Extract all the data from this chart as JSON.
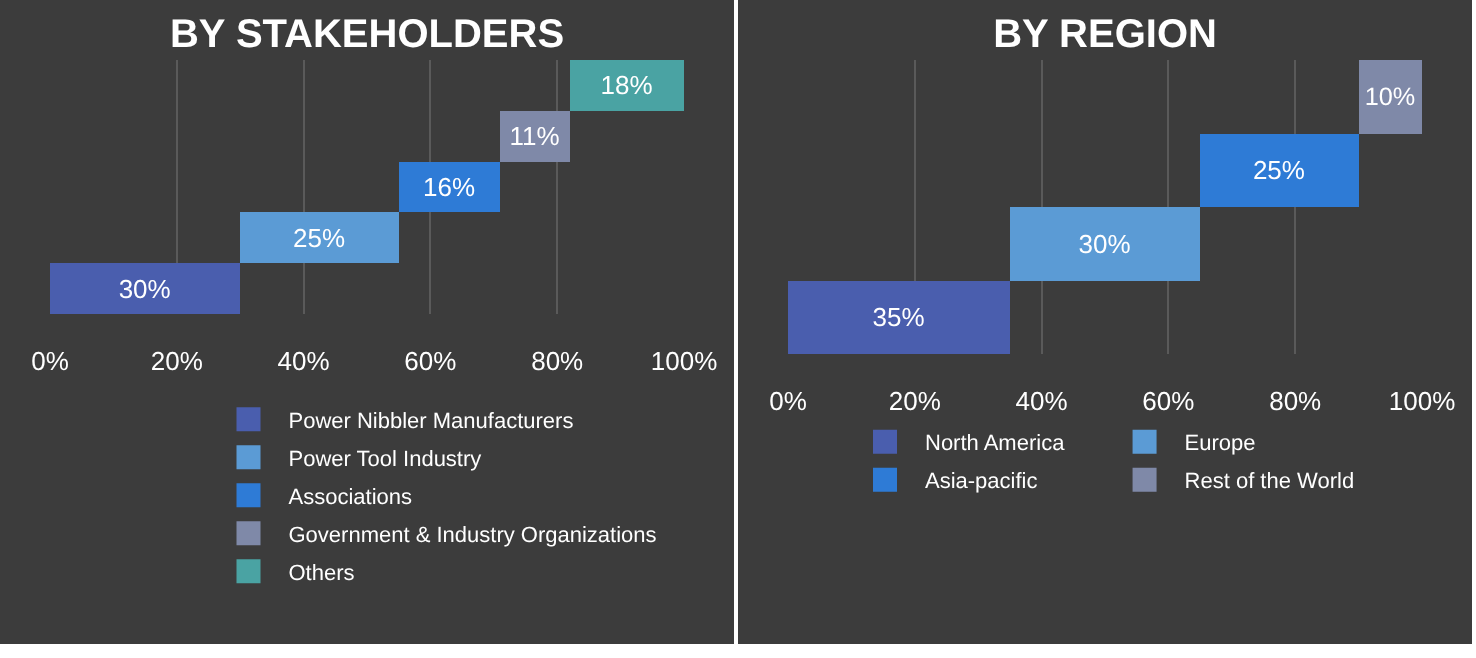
{
  "chart_data": [
    {
      "type": "bar",
      "title": "BY STAKEHOLDERS",
      "orientation": "horizontal",
      "categories": [
        null,
        null,
        null,
        null,
        null
      ],
      "xlim": [
        0,
        100
      ],
      "xticks": [
        {
          "value": 0,
          "label": "0%"
        },
        {
          "value": 20,
          "label": "20%"
        },
        {
          "value": 40,
          "label": "40%"
        },
        {
          "value": 60,
          "label": "60%"
        },
        {
          "value": 80,
          "label": "80%"
        },
        {
          "value": 100,
          "label": "100%"
        }
      ],
      "grid": "x",
      "legend": "bottom",
      "tick_labels": "x",
      "series": [
        {
          "name": "Power Nibbler Manufacturers",
          "color": "#4a5eae",
          "values": [
            null,
            null,
            null,
            null,
            30
          ],
          "base": [
            null,
            null,
            null,
            null,
            0
          ],
          "value_labels": [
            null,
            null,
            null,
            null,
            "30%"
          ]
        },
        {
          "name": "Power Tool Industry",
          "color": "#5b9bd5",
          "values": [
            null,
            null,
            null,
            25,
            null
          ],
          "base": [
            null,
            null,
            null,
            30,
            null
          ],
          "value_labels": [
            null,
            null,
            null,
            "25%",
            null
          ]
        },
        {
          "name": "Associations",
          "color": "#2e7bd6",
          "values": [
            null,
            null,
            16,
            null,
            null
          ],
          "base": [
            null,
            null,
            55,
            null,
            null
          ],
          "value_labels": [
            null,
            null,
            "16%",
            null,
            null
          ]
        },
        {
          "name": "Government & Industry Organizations",
          "color": "#7f89a8",
          "values": [
            null,
            11,
            null,
            null,
            null
          ],
          "base": [
            null,
            71,
            null,
            null,
            null
          ],
          "value_labels": [
            null,
            "11%",
            null,
            null,
            null
          ]
        },
        {
          "name": "Others",
          "color": "#4aa3a3",
          "values": [
            18,
            null,
            null,
            null,
            null
          ],
          "base": [
            82,
            null,
            null,
            null,
            null
          ],
          "value_labels": [
            "18%",
            null,
            null,
            null,
            null
          ]
        }
      ]
    },
    {
      "type": "bar",
      "title": "BY REGION",
      "orientation": "horizontal",
      "categories": [
        null,
        null,
        null,
        null
      ],
      "xlim": [
        0,
        100
      ],
      "xticks": [
        {
          "value": 0,
          "label": "0%"
        },
        {
          "value": 20,
          "label": "20%"
        },
        {
          "value": 40,
          "label": "40%"
        },
        {
          "value": 60,
          "label": "60%"
        },
        {
          "value": 80,
          "label": "80%"
        },
        {
          "value": 100,
          "label": "100%"
        }
      ],
      "grid": "x",
      "legend": "bottom",
      "tick_labels": "x",
      "series": [
        {
          "name": "North America",
          "color": "#4a5eae",
          "values": [
            null,
            null,
            null,
            35
          ],
          "base": [
            null,
            null,
            null,
            0
          ],
          "value_labels": [
            null,
            null,
            null,
            "35%"
          ]
        },
        {
          "name": "Europe",
          "color": "#5b9bd5",
          "values": [
            null,
            null,
            30,
            null
          ],
          "base": [
            null,
            null,
            35,
            null
          ],
          "value_labels": [
            null,
            null,
            "30%",
            null
          ]
        },
        {
          "name": "Asia-pacific",
          "color": "#2e7bd6",
          "values": [
            null,
            25,
            null,
            null
          ],
          "base": [
            null,
            65,
            null,
            null
          ],
          "value_labels": [
            null,
            "25%",
            null,
            null
          ]
        },
        {
          "name": "Rest of the World",
          "color": "#7f89a8",
          "values": [
            10,
            null,
            null,
            null
          ],
          "base": [
            90,
            null,
            null,
            null
          ],
          "value_labels": [
            "10%",
            null,
            null,
            null
          ]
        }
      ]
    }
  ]
}
